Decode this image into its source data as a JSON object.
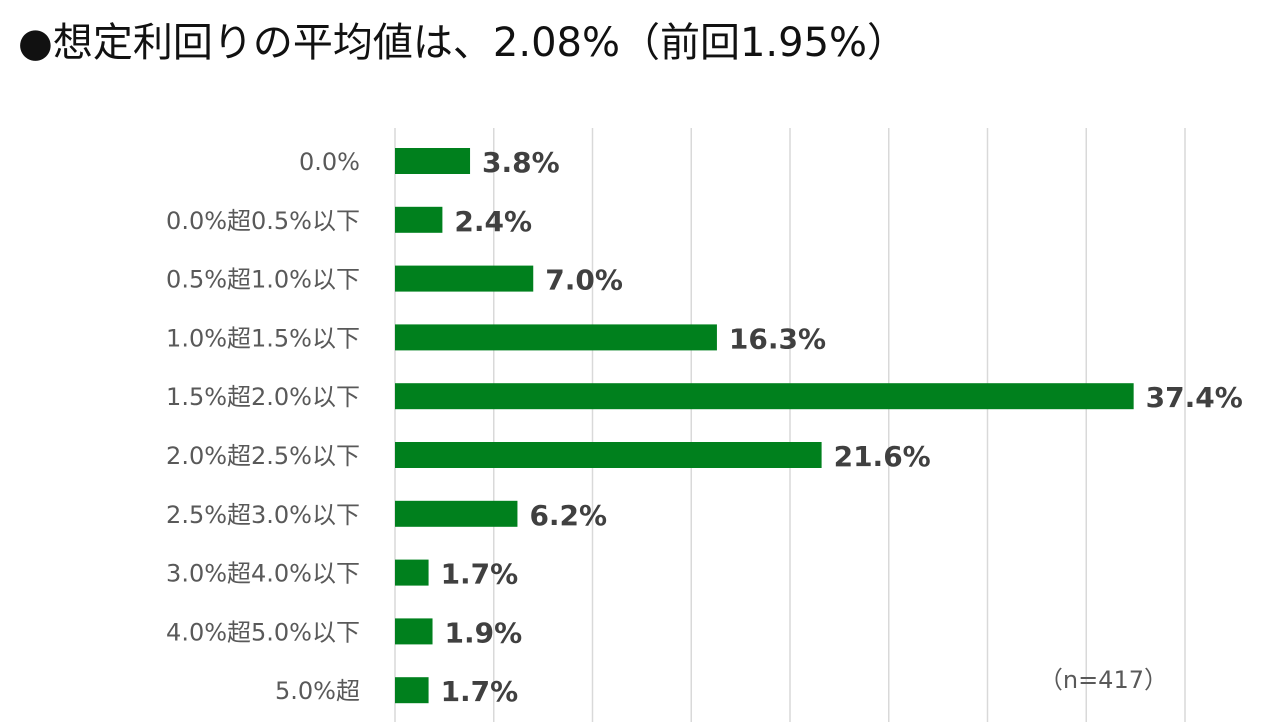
{
  "title": "●想定利回りの平均値は、2.08%（前回1.95%）",
  "note": "（n=417）",
  "colors": {
    "bar": "#00801d",
    "grid": "#d9d9d9",
    "category_text": "#595959",
    "value_text": "#404040"
  },
  "chart_data": {
    "type": "bar",
    "orientation": "horizontal",
    "title": "●想定利回りの平均値は、2.08%（前回1.95%）",
    "categories": [
      "0.0%",
      "0.0%超0.5%以下",
      "0.5%超1.0%以下",
      "1.0%超1.5%以下",
      "1.5%超2.0%以下",
      "2.0%超2.5%以下",
      "2.5%超3.0%以下",
      "3.0%超4.0%以下",
      "4.0%超5.0%以下",
      "5.0%超"
    ],
    "values": [
      3.8,
      2.4,
      7.0,
      16.3,
      37.4,
      21.6,
      6.2,
      1.7,
      1.9,
      1.7
    ],
    "value_labels": [
      "3.8%",
      "2.4%",
      "7.0%",
      "16.3%",
      "37.4%",
      "21.6%",
      "6.2%",
      "1.7%",
      "1.9%",
      "1.7%"
    ],
    "xlim": [
      0,
      40
    ],
    "grid": true,
    "unit": "%",
    "annotation": "（n=417）"
  }
}
